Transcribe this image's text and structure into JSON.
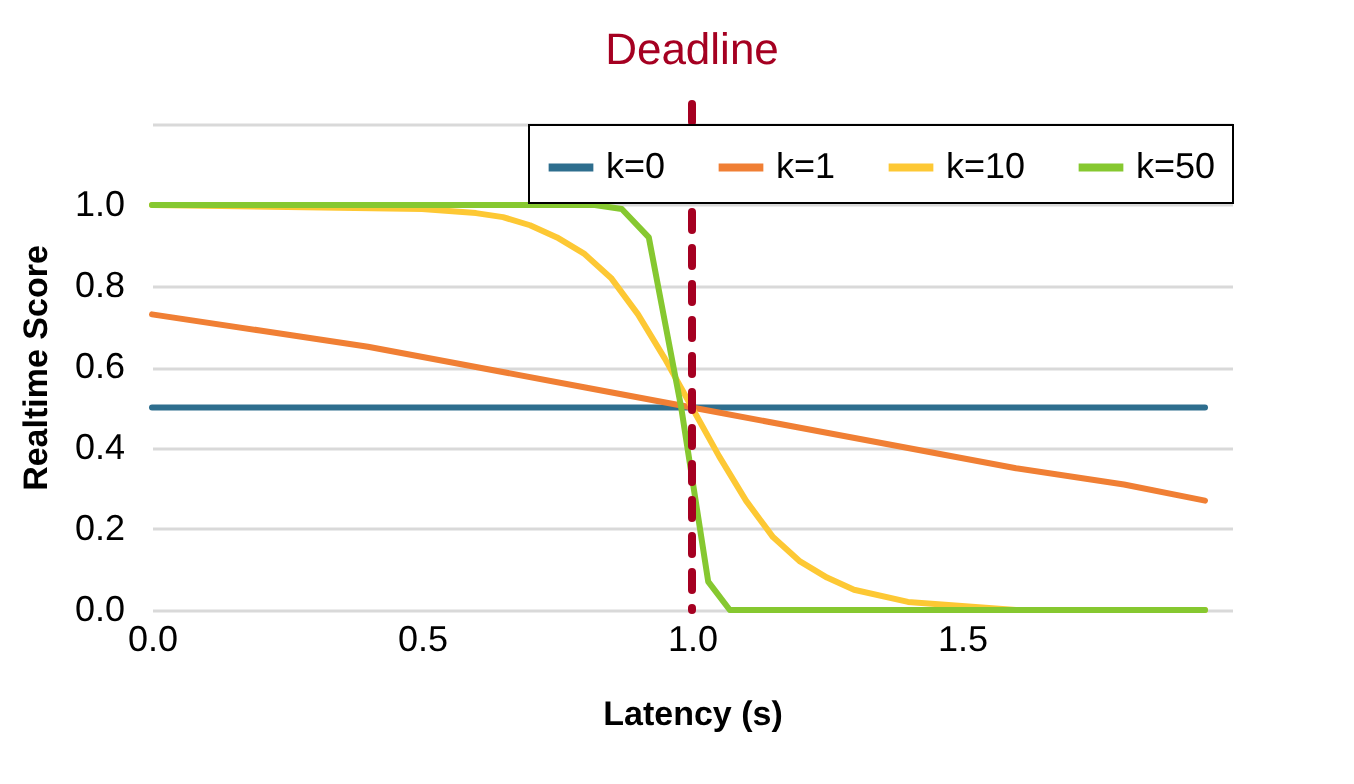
{
  "chart_data": {
    "type": "line",
    "xlabel": "Latency (s)",
    "ylabel": "Realtime Score",
    "xlim": [
      0,
      2.0
    ],
    "xticks": [
      {
        "value": 0,
        "label": "0.0"
      },
      0.5,
      {
        "value": 1,
        "label": "1.0"
      },
      1.5
    ],
    "ylim": [
      0,
      1.2
    ],
    "yticks": [
      {
        "value": 0,
        "label": "0.0"
      },
      0.2,
      0.4,
      0.6,
      0.8,
      {
        "value": 1,
        "label": "1.0"
      },
      {
        "value": 1.2,
        "label": null
      }
    ],
    "grid": "y",
    "legend": "top right",
    "line_style": "solid",
    "ref_lines": [
      {
        "axis": "x",
        "value": 1.0,
        "label": "Deadline",
        "color": "#a50021",
        "line_style": "dashed"
      }
    ],
    "series": [
      {
        "name": "k=0",
        "color": "#2e6e8e",
        "x": [
          0,
          1.95
        ],
        "values": [
          0.5,
          0.5
        ]
      },
      {
        "name": "k=1",
        "color": "#f07f34",
        "x": [
          0,
          0.2,
          0.4,
          0.6,
          0.8,
          1.0,
          1.2,
          1.4,
          1.6,
          1.8,
          1.95
        ],
        "values": [
          0.73,
          0.69,
          0.65,
          0.6,
          0.55,
          0.5,
          0.45,
          0.4,
          0.35,
          0.31,
          0.27
        ]
      },
      {
        "name": "k=10",
        "color": "#fdc834",
        "x": [
          0,
          0.5,
          0.6,
          0.65,
          0.7,
          0.75,
          0.8,
          0.85,
          0.9,
          0.95,
          1.0,
          1.05,
          1.1,
          1.15,
          1.2,
          1.25,
          1.3,
          1.4,
          1.5,
          1.6,
          1.95
        ],
        "values": [
          1,
          0.99,
          0.98,
          0.97,
          0.95,
          0.92,
          0.88,
          0.82,
          0.73,
          0.62,
          0.5,
          0.38,
          0.27,
          0.18,
          0.12,
          0.08,
          0.05,
          0.02,
          0.01,
          0,
          0
        ]
      },
      {
        "name": "k=50",
        "color": "#86c830",
        "x": [
          0,
          0.82,
          0.87,
          0.92,
          0.98,
          1.03,
          1.07,
          1.95
        ],
        "values": [
          1,
          1,
          0.99,
          0.92,
          0.5,
          0.07,
          0,
          0
        ]
      }
    ]
  }
}
